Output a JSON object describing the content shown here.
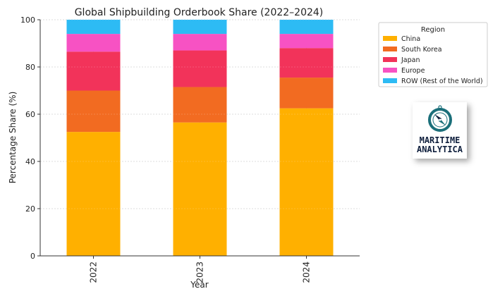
{
  "chart_data": {
    "type": "bar",
    "stacked": true,
    "title": "Global Shipbuilding Orderbook Share (2022–2024)",
    "xlabel": "Year",
    "ylabel": "Percentage Share (%)",
    "ylim": [
      0,
      100
    ],
    "yticks": [
      "0",
      "20",
      "40",
      "60",
      "80",
      "100"
    ],
    "categories": [
      "2022",
      "2023",
      "2024"
    ],
    "series": [
      {
        "name": "China",
        "color": "#FFB000",
        "values": [
          52.5,
          56.5,
          62.5
        ]
      },
      {
        "name": "South Korea",
        "color": "#F26B21",
        "values": [
          17.5,
          15.0,
          13.0
        ]
      },
      {
        "name": "Japan",
        "color": "#F2335A",
        "values": [
          16.5,
          15.5,
          12.5
        ]
      },
      {
        "name": "Europe",
        "color": "#F752C3",
        "values": [
          7.5,
          7.0,
          6.0
        ]
      },
      {
        "name": "ROW (Rest of the World)",
        "color": "#2DBBF4",
        "values": [
          6.0,
          6.0,
          6.0
        ]
      }
    ],
    "legend": {
      "title": "Region",
      "placement": "outside-right"
    },
    "grid": true
  },
  "logo": {
    "line1": "MARITIME",
    "line2": "ANALYTICA",
    "icon": "compass-icon",
    "color": "#0f1f3d",
    "accent": "#1b6f7a"
  }
}
